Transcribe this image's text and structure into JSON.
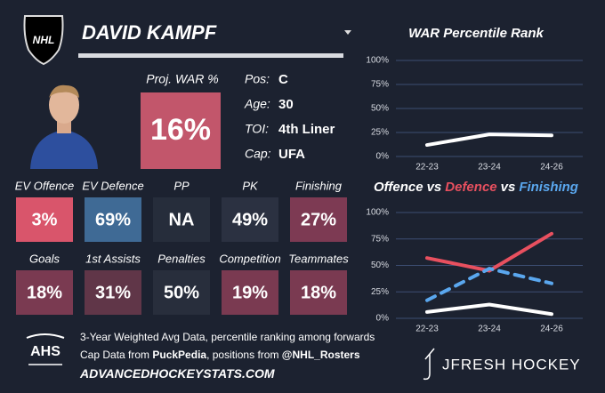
{
  "header": {
    "league": "NHL",
    "name": "DAVID KAMPF"
  },
  "profile": {
    "proj_war_label": "Proj. WAR %",
    "proj_war": "16%",
    "info": [
      {
        "label": "Pos:",
        "value": "C"
      },
      {
        "label": "Age:",
        "value": "30"
      },
      {
        "label": "TOI:",
        "value": "4th Liner"
      },
      {
        "label": "Cap:",
        "value": "UFA"
      }
    ]
  },
  "tiles": [
    [
      {
        "label": "EV Offence",
        "value": "3%",
        "color": "#d9556b"
      },
      {
        "label": "EV Defence",
        "value": "69%",
        "color": "#3f6a95"
      },
      {
        "label": "PP",
        "value": "NA",
        "color": "#262d3b"
      },
      {
        "label": "PK",
        "value": "49%",
        "color": "#2b3141"
      },
      {
        "label": "Finishing",
        "value": "27%",
        "color": "#7d3a53"
      }
    ],
    [
      {
        "label": "Goals",
        "value": "18%",
        "color": "#7a3a51"
      },
      {
        "label": "1st Assists",
        "value": "31%",
        "color": "#603648"
      },
      {
        "label": "Penalties",
        "value": "50%",
        "color": "#282e3c"
      },
      {
        "label": "Competition",
        "value": "19%",
        "color": "#7a3a51"
      },
      {
        "label": "Teammates",
        "value": "18%",
        "color": "#7a3a51"
      }
    ]
  ],
  "footer": {
    "logo": "AHS",
    "note": "3-Year Weighted Avg Data, percentile ranking among forwards",
    "cap_prefix": "Cap Data from ",
    "cap_source": "PuckPedia",
    "cap_mid": ", positions from ",
    "pos_source": "@NHL_Rosters",
    "website": "ADVANCEDHOCKEYSTATS.COM",
    "brand": "JFRESH HOCKEY"
  },
  "chart_data": [
    {
      "type": "line",
      "title": "WAR Percentile Rank",
      "categories": [
        "22-23",
        "23-24",
        "24-26"
      ],
      "series": [
        {
          "name": "WAR",
          "color": "#ffffff",
          "dashed": false,
          "values": [
            12,
            23,
            22
          ]
        }
      ],
      "ylim": [
        0,
        100
      ],
      "yticks": [
        {
          "value": 0,
          "label": "0%"
        },
        {
          "value": 25,
          "label": "25%"
        },
        {
          "value": 50,
          "label": "50%"
        },
        {
          "value": 75,
          "label": "75%"
        },
        {
          "value": 100,
          "label": "100%"
        }
      ],
      "grid": true
    },
    {
      "type": "line",
      "title_joiner": "vs",
      "categories": [
        "22-23",
        "23-24",
        "24-26"
      ],
      "series": [
        {
          "name": "Offence",
          "color": "#ffffff",
          "dashed": false,
          "values": [
            6,
            13,
            4
          ]
        },
        {
          "name": "Defence",
          "color": "#e8505f",
          "dashed": false,
          "values": [
            57,
            45,
            80
          ]
        },
        {
          "name": "Finishing",
          "color": "#5aa7ee",
          "dashed": true,
          "values": [
            17,
            47,
            33
          ]
        }
      ],
      "ylim": [
        0,
        100
      ],
      "yticks": [
        {
          "value": 0,
          "label": "0%"
        },
        {
          "value": 25,
          "label": "25%"
        },
        {
          "value": 50,
          "label": "50%"
        },
        {
          "value": 75,
          "label": "75%"
        },
        {
          "value": 100,
          "label": "100%"
        }
      ],
      "grid": true
    }
  ]
}
